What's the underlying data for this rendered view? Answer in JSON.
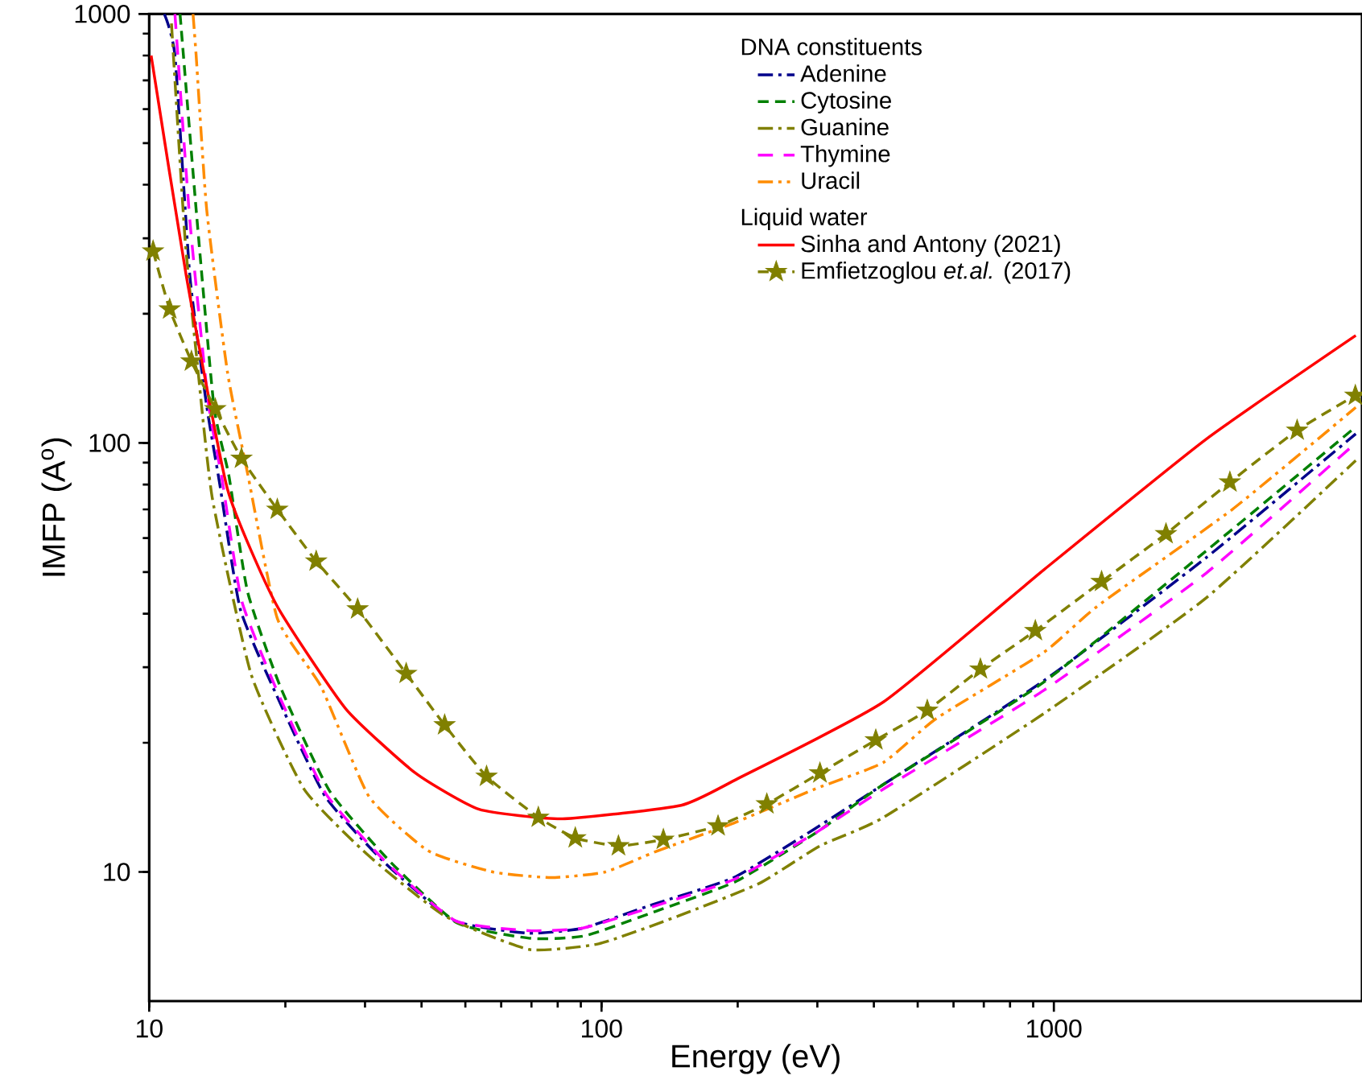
{
  "chart_data": {
    "type": "line",
    "xlabel": "Energy (eV)",
    "ylabel": "IMFP (A$^{o}$)",
    "legend_title": "DNA constituents",
    "annotations": [
      "Liquid water"
    ],
    "log": "xy",
    "xlim": [
      10,
      4800
    ],
    "ylim": [
      5,
      1000
    ],
    "xticks": [
      10,
      100,
      1000
    ],
    "yticks": [
      10,
      100,
      1000
    ],
    "grid": false,
    "legend": "top right",
    "series": [
      {
        "name": "Adenine",
        "color": "#00008b",
        "line_style": "dashdot",
        "marker": "none",
        "x": [
          10.8,
          11.4,
          12.3,
          13.4,
          14.3,
          15.9,
          19.2,
          24.5,
          33.2,
          47.3,
          69,
          91,
          130,
          196,
          296,
          420,
          950,
          2170,
          4650
        ],
        "values": [
          1000,
          800,
          245,
          122,
          81,
          41,
          25.6,
          15,
          10.5,
          7.7,
          7.2,
          7.4,
          8.4,
          9.7,
          12.6,
          16,
          27.9,
          54,
          105
        ]
      },
      {
        "name": "Cytosine",
        "color": "#008000",
        "line_style": "dashed",
        "marker": "none",
        "x": [
          11.7,
          12.7,
          13.9,
          15,
          16.5,
          19.5,
          25,
          34,
          48,
          70,
          92,
          132,
          198,
          300,
          420,
          950,
          2170,
          4650
        ],
        "values": [
          1000,
          350,
          122,
          84,
          45,
          27,
          15.5,
          10.6,
          7.6,
          7,
          7.1,
          8.1,
          9.5,
          12.4,
          16,
          27.7,
          56,
          109
        ]
      },
      {
        "name": "Guanine",
        "color": "#808000",
        "line_style": "dashdot",
        "marker": "none",
        "x": [
          11.2,
          12,
          12.8,
          13.8,
          16.8,
          22,
          30.6,
          45,
          69,
          98.5,
          148,
          223,
          304,
          420,
          950,
          2170,
          4650
        ],
        "values": [
          950,
          300,
          150,
          74,
          28.9,
          15.6,
          10.9,
          7.9,
          6.6,
          6.8,
          7.9,
          9.4,
          11.5,
          13.4,
          23.4,
          43.5,
          91
        ]
      },
      {
        "name": "Thymine",
        "color": "#ff00ff",
        "line_style": "loosedash",
        "marker": "none",
        "x": [
          11.4,
          12.3,
          13.5,
          14.5,
          16,
          19.3,
          24.6,
          33.5,
          47.5,
          69,
          91,
          130,
          196,
          296,
          420,
          950,
          2170,
          4650
        ],
        "values": [
          1000,
          330,
          125,
          82,
          43,
          26,
          15.2,
          10.5,
          7.7,
          7.3,
          7.4,
          8.3,
          9.6,
          12.3,
          15.6,
          26.5,
          49.7,
          100
        ]
      },
      {
        "name": "Uracil",
        "color": "#ff8c00",
        "line_style": "dashdotdot",
        "marker": "none",
        "x": [
          12.5,
          12.7,
          13.4,
          14.9,
          16.5,
          19.2,
          24,
          30.6,
          41.4,
          57.5,
          77.5,
          102,
          133,
          196,
          296,
          420,
          550,
          950,
          1250,
          2480,
          4650
        ],
        "values": [
          1000,
          800,
          350,
          146,
          85,
          39,
          27,
          15,
          11.2,
          10,
          9.7,
          10,
          11.2,
          13,
          15.6,
          18,
          22.8,
          32.5,
          41.7,
          70,
          121
        ]
      },
      {
        "name": "Sinha and Antony (2021)",
        "color": "#ff0000",
        "line_style": "solid",
        "marker": "none",
        "x": [
          10.1,
          12.07,
          14.9,
          19.1,
          27.2,
          38.8,
          53.6,
          82,
          150,
          200,
          420,
          950,
          2170,
          4650
        ],
        "values": [
          800,
          246,
          78,
          42,
          24,
          17,
          14,
          13.3,
          14.3,
          16.5,
          24.9,
          50.6,
          102,
          178
        ]
      },
      {
        "name": "Emfietzoglou *et.al.* (2017)",
        "color": "#808000",
        "line_style": "dashed",
        "marker": "star",
        "x": [
          10.2,
          11.1,
          12.4,
          14,
          16,
          19.2,
          23.4,
          28.9,
          37,
          45,
          55.7,
          72.5,
          87.5,
          109,
          137,
          181,
          232,
          304,
          404,
          525,
          688,
          910,
          1275,
          1770,
          2450,
          3450,
          4640
        ],
        "values": [
          280,
          205,
          155,
          120,
          92,
          70,
          53,
          41,
          29,
          22,
          16.7,
          13.4,
          12,
          11.5,
          11.9,
          12.8,
          14.4,
          17,
          20.3,
          23.8,
          29.7,
          36.5,
          47.5,
          61.4,
          81,
          107,
          129
        ]
      }
    ]
  }
}
